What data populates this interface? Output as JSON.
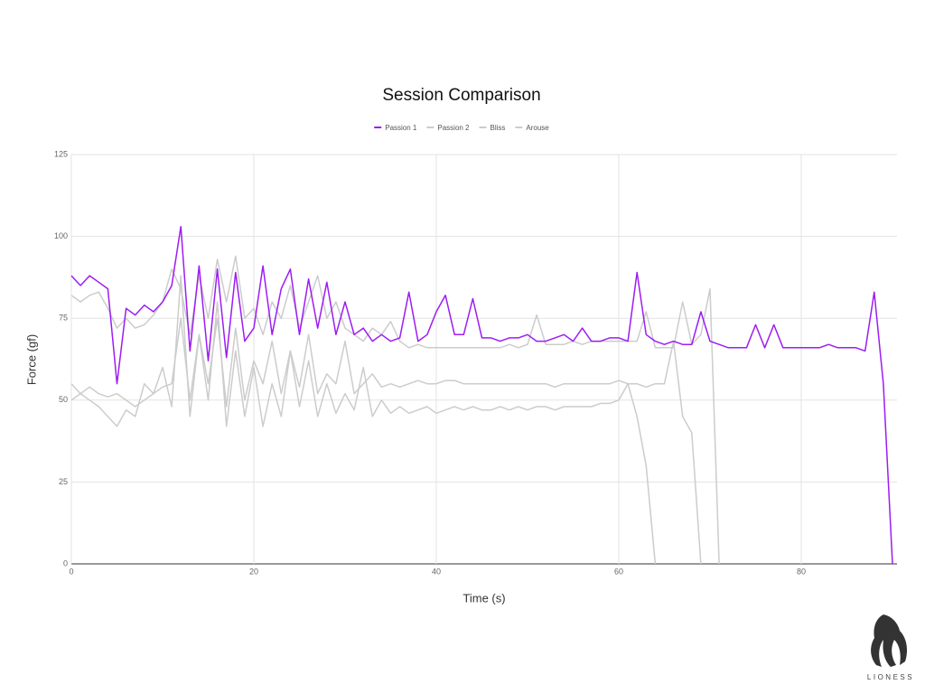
{
  "chart_data": {
    "type": "line",
    "title": "Session Comparison",
    "x_label": "Time (s)",
    "y_label": "Force (gf)",
    "xlim": [
      0,
      90.5
    ],
    "xticks": [
      0,
      20,
      40,
      60,
      80
    ],
    "ylim": [
      0,
      125
    ],
    "yticks": [
      0,
      25,
      50,
      75,
      100,
      125
    ],
    "grid": true,
    "legend": "top",
    "x": [
      0,
      1,
      2,
      3,
      4,
      5,
      6,
      7,
      8,
      9,
      10,
      11,
      12,
      13,
      14,
      15,
      16,
      17,
      18,
      19,
      20,
      21,
      22,
      23,
      24,
      25,
      26,
      27,
      28,
      29,
      30,
      31,
      32,
      33,
      34,
      35,
      36,
      37,
      38,
      39,
      40,
      41,
      42,
      43,
      44,
      45,
      46,
      47,
      48,
      49,
      50,
      51,
      52,
      53,
      54,
      55,
      56,
      57,
      58,
      59,
      60,
      61,
      62,
      63,
      64,
      65,
      66,
      67,
      68,
      69,
      70,
      71,
      72,
      73,
      74,
      75,
      76,
      77,
      78,
      79,
      80,
      81,
      82,
      83,
      84,
      85,
      86,
      87,
      88,
      89,
      90
    ],
    "series": [
      {
        "name": "Passion 1",
        "color": "#9d1cf2",
        "values": [
          88,
          85,
          88,
          86,
          84,
          55,
          78,
          76,
          79,
          77,
          80,
          85,
          103,
          65,
          91,
          62,
          90,
          63,
          89,
          68,
          72,
          91,
          70,
          84,
          90,
          70,
          87,
          72,
          86,
          70,
          80,
          70,
          72,
          68,
          70,
          68,
          69,
          83,
          68,
          70,
          77,
          82,
          70,
          70,
          81,
          69,
          69,
          68,
          69,
          69,
          70,
          68,
          68,
          69,
          70,
          68,
          72,
          68,
          68,
          69,
          69,
          68,
          89,
          70,
          68,
          67,
          68,
          67,
          67,
          77,
          68,
          67,
          66,
          66,
          66,
          73,
          66,
          73,
          66,
          66,
          66,
          66,
          66,
          67,
          66,
          66,
          66,
          65,
          83,
          55,
          0
        ]
      },
      {
        "name": "Passion 2",
        "color": "#cccccc",
        "values": [
          82,
          80,
          82,
          83,
          78,
          72,
          75,
          72,
          73,
          76,
          80,
          90,
          84,
          70,
          88,
          75,
          93,
          80,
          94,
          75,
          78,
          70,
          80,
          75,
          85,
          72,
          80,
          88,
          75,
          80,
          72,
          70,
          68,
          72,
          70,
          74,
          68,
          66,
          67,
          66,
          66,
          66,
          66,
          66,
          66,
          66,
          66,
          66,
          67,
          66,
          67,
          76,
          67,
          67,
          67,
          68,
          67,
          68,
          68,
          68,
          68,
          68,
          68,
          77,
          66,
          66,
          66,
          80,
          67,
          70,
          84,
          0,
          null,
          null,
          null,
          null,
          null,
          null,
          null,
          null,
          null,
          null,
          null,
          null,
          null,
          null,
          null,
          null,
          null,
          null,
          null
        ]
      },
      {
        "name": "Bliss",
        "color": "#cccccc",
        "values": [
          50,
          52,
          50,
          48,
          45,
          42,
          47,
          45,
          55,
          52,
          60,
          48,
          88,
          45,
          70,
          50,
          80,
          42,
          65,
          45,
          60,
          42,
          55,
          45,
          65,
          48,
          62,
          45,
          55,
          46,
          52,
          47,
          60,
          45,
          50,
          46,
          48,
          46,
          47,
          48,
          46,
          47,
          48,
          47,
          48,
          47,
          47,
          48,
          47,
          48,
          47,
          48,
          48,
          47,
          48,
          48,
          48,
          48,
          49,
          49,
          50,
          55,
          45,
          30,
          0,
          null,
          null,
          null,
          null,
          null,
          null,
          null,
          null,
          null,
          null,
          null,
          null,
          null,
          null,
          null,
          null,
          null,
          null,
          null,
          null,
          null,
          null,
          null,
          null,
          null,
          null
        ]
      },
      {
        "name": "Arouse",
        "color": "#cccccc",
        "values": [
          55,
          52,
          54,
          52,
          51,
          52,
          50,
          48,
          50,
          52,
          54,
          55,
          75,
          50,
          70,
          55,
          75,
          48,
          72,
          50,
          62,
          55,
          68,
          52,
          65,
          54,
          70,
          52,
          58,
          55,
          68,
          52,
          55,
          58,
          54,
          55,
          54,
          55,
          56,
          55,
          55,
          56,
          56,
          55,
          55,
          55,
          55,
          55,
          55,
          55,
          55,
          55,
          55,
          54,
          55,
          55,
          55,
          55,
          55,
          55,
          56,
          55,
          55,
          54,
          55,
          55,
          68,
          45,
          40,
          0,
          null,
          null,
          null,
          null,
          null,
          null,
          null,
          null,
          null,
          null,
          null,
          null,
          null,
          null,
          null,
          null,
          null,
          null,
          null,
          null,
          null
        ]
      }
    ]
  },
  "brand": {
    "name": "LIONESS"
  }
}
